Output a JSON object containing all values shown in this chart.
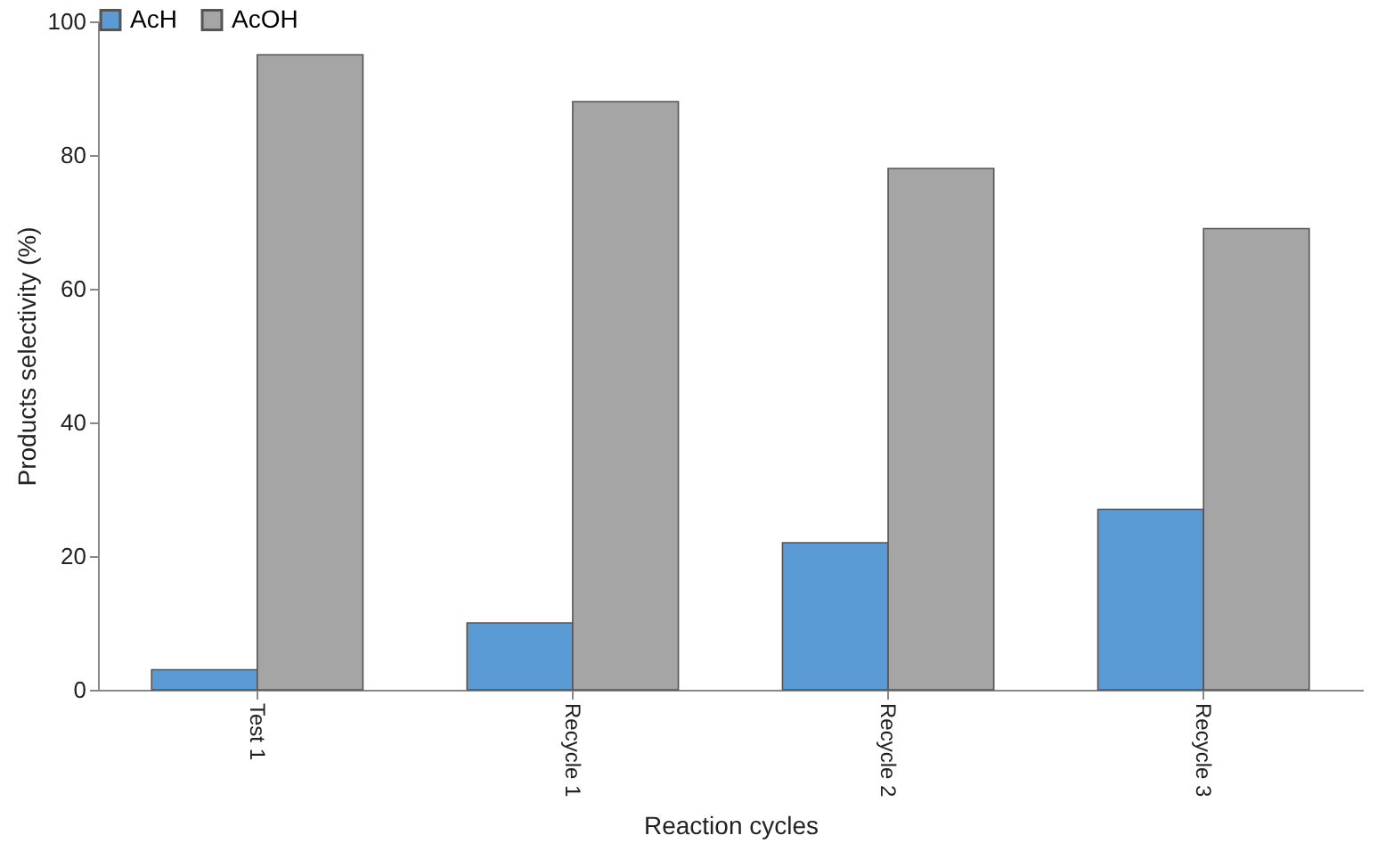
{
  "chart_data": {
    "type": "bar",
    "xlabel": "Reaction cycles",
    "ylabel": "Products selectivity (%)",
    "categories": [
      "Test 1",
      "Recycle 1",
      "Recycle 2",
      "Recycle 3"
    ],
    "series": [
      {
        "name": "AcH",
        "color": "#5b9bd5",
        "values": [
          3,
          10,
          22,
          27
        ]
      },
      {
        "name": "AcOH",
        "color": "#a5a5a5",
        "values": [
          95,
          88,
          78,
          69
        ]
      }
    ],
    "ylim": [
      0,
      100
    ],
    "yticks": [
      0,
      20,
      40,
      60,
      80,
      100
    ],
    "grid": false,
    "legend": "top"
  }
}
